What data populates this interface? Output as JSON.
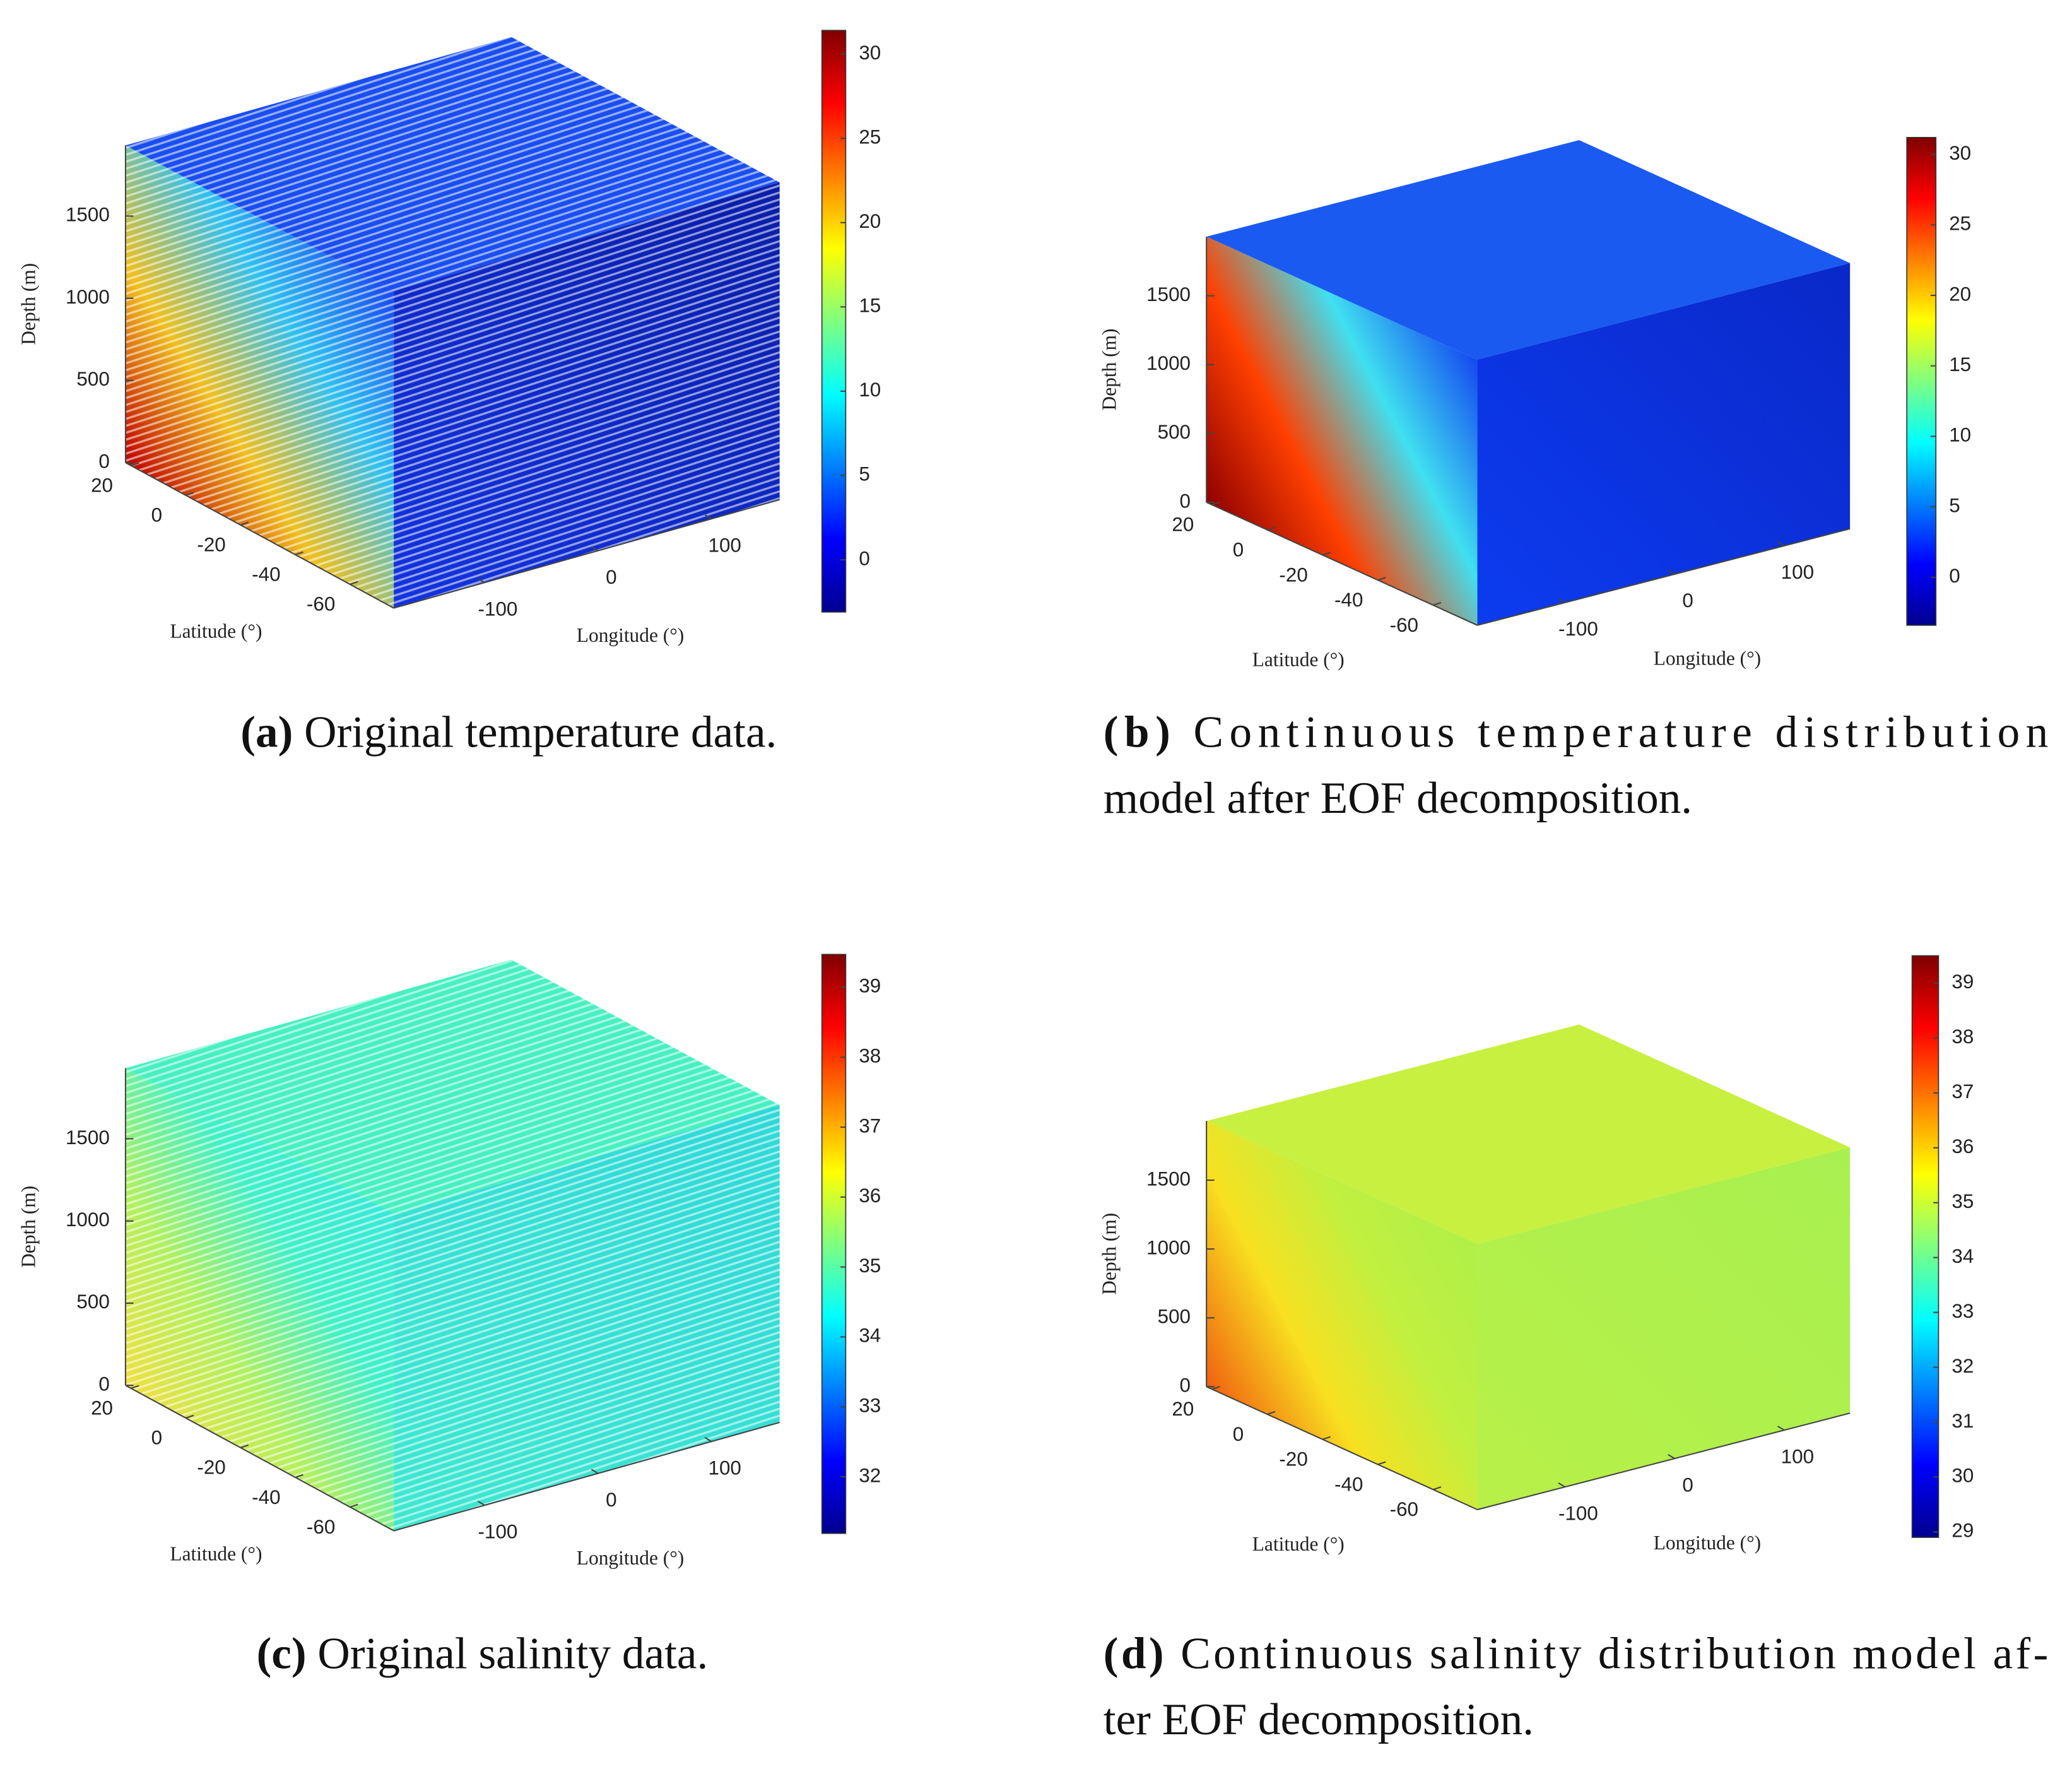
{
  "chart_data": [
    {
      "type": "scatter3d",
      "zlabel": "Depth (m)",
      "xlabel": "Latitude (°)",
      "ylabel": "Longitude (°)",
      "zlim": [
        0,
        1930
      ],
      "zticks": [
        0,
        500,
        1000,
        1500
      ],
      "xlim": [
        22,
        -76
      ],
      "xticks": [
        20,
        0,
        -20,
        -40,
        -60
      ],
      "ylim": [
        -180,
        160
      ],
      "yticks": [
        -100,
        0,
        100
      ],
      "colormap": "jet",
      "clim": [
        -3.1,
        31.4
      ],
      "cticks": [
        0,
        5,
        10,
        15,
        20,
        25,
        30
      ],
      "caption": {
        "label": "(a)",
        "lines": [
          "Original temperature data."
        ]
      }
    },
    {
      "type": "surface3d",
      "zlabel": "Depth (m)",
      "xlabel": "Latitude (°)",
      "ylabel": "Longitude (°)",
      "zlim": [
        0,
        1930
      ],
      "zticks": [
        0,
        500,
        1000,
        1500
      ],
      "xlim": [
        22,
        -76
      ],
      "xticks": [
        20,
        0,
        -20,
        -40,
        -60
      ],
      "ylim": [
        -180,
        160
      ],
      "yticks": [
        -100,
        0,
        100
      ],
      "colormap": "jet",
      "clim": [
        -3.4,
        31.2
      ],
      "cticks": [
        0,
        5,
        10,
        15,
        20,
        25,
        30
      ],
      "caption": {
        "label": "(b)",
        "lines": [
          "Continuous temperature distribution",
          "model after EOF decomposition."
        ]
      }
    },
    {
      "type": "scatter3d",
      "zlabel": "Depth (m)",
      "xlabel": "Latitude (°)",
      "ylabel": "Longitude (°)",
      "zlim": [
        0,
        1930
      ],
      "zticks": [
        0,
        500,
        1000,
        1500
      ],
      "xlim": [
        22,
        -76
      ],
      "xticks": [
        20,
        0,
        -20,
        -40,
        -60
      ],
      "ylim": [
        -180,
        160
      ],
      "yticks": [
        -100,
        0,
        100
      ],
      "colormap": "jet",
      "clim": [
        31.19,
        39.47
      ],
      "cticks": [
        32,
        33,
        34,
        35,
        36,
        37,
        38,
        39
      ],
      "caption": {
        "label": "(c)",
        "lines": [
          "Original salinity data."
        ]
      }
    },
    {
      "type": "surface3d",
      "zlabel": "Depth (m)",
      "xlabel": "Latitude (°)",
      "ylabel": "Longitude (°)",
      "zlim": [
        0,
        1930
      ],
      "zticks": [
        0,
        500,
        1000,
        1500
      ],
      "xlim": [
        22,
        -76
      ],
      "xticks": [
        20,
        0,
        -20,
        -40,
        -60
      ],
      "ylim": [
        -180,
        160
      ],
      "yticks": [
        -100,
        0,
        100
      ],
      "colormap": "jet",
      "clim": [
        28.9,
        39.5
      ],
      "cticks": [
        29,
        30,
        31,
        32,
        33,
        34,
        35,
        36,
        37,
        38,
        39
      ],
      "caption": {
        "label": "(d)",
        "lines": [
          "Continuous salinity distribution model af-",
          "ter EOF decomposition."
        ]
      }
    }
  ]
}
